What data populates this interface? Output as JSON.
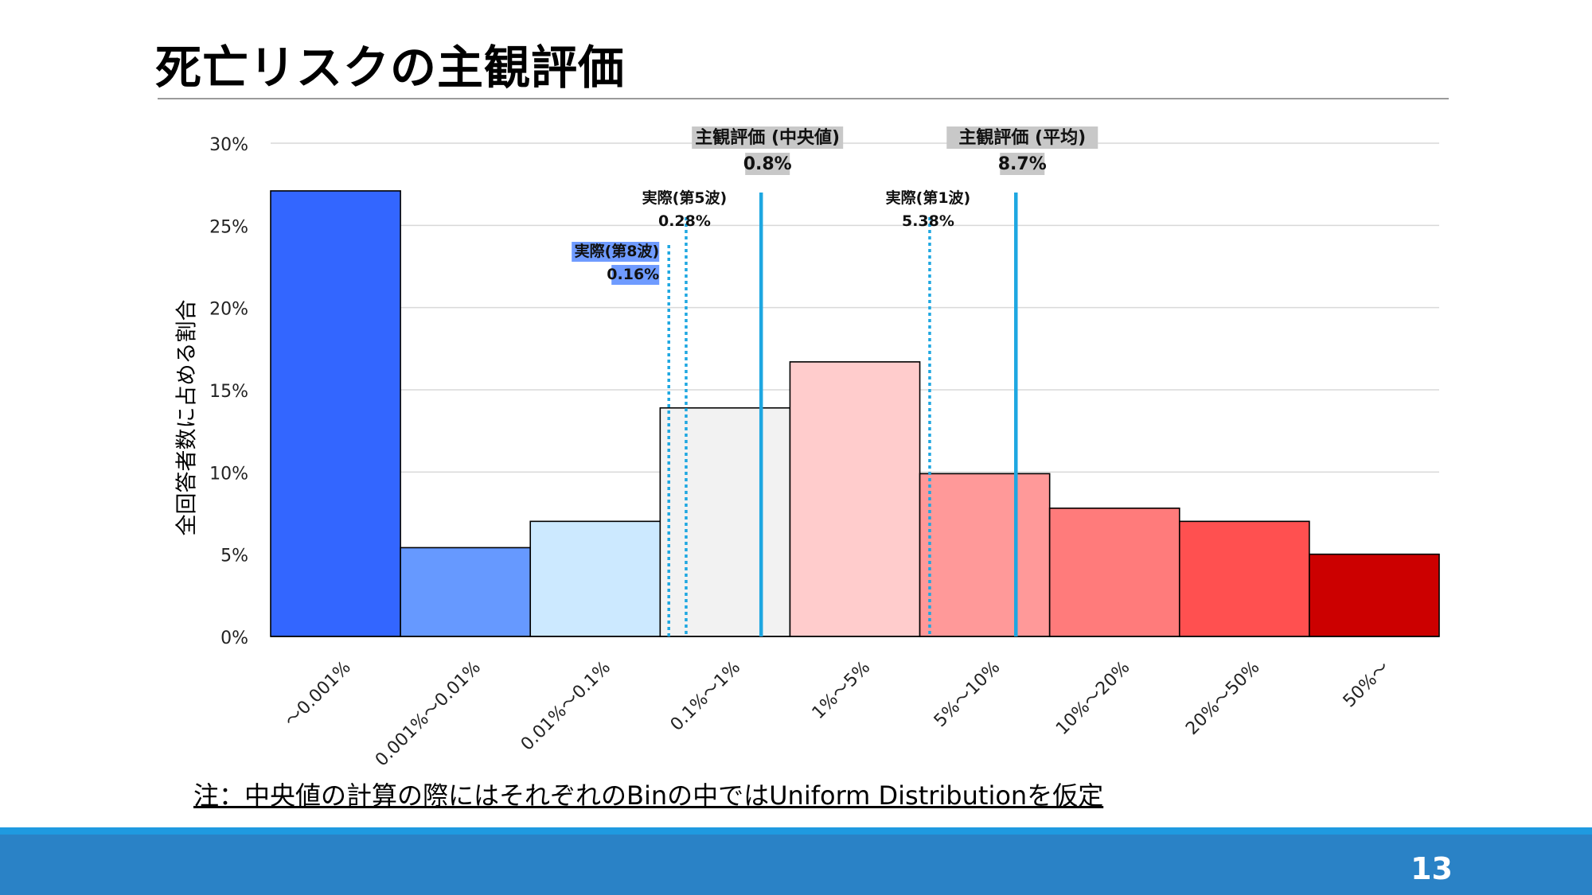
{
  "slide": {
    "title": "死亡リスクの主観評価",
    "note": "注：中央値の計算の際にはそれぞれのBinの中ではUniform Distributionを仮定",
    "page_number": "13"
  },
  "colors": {
    "footer_bar": "#2a82c6",
    "footer_line": "#1f9ae0",
    "subjective_line": "#1ea7e1",
    "actual_line": "#1ea7e1"
  },
  "chart_data": {
    "type": "bar",
    "ylabel": "全回答者数に占める割合",
    "ylim": [
      0,
      30
    ],
    "yticks": [
      "0%",
      "5%",
      "10%",
      "15%",
      "20%",
      "25%",
      "30%"
    ],
    "grid": true,
    "categories": [
      "～0.001%",
      "0.001%～0.01%",
      "0.01%～0.1%",
      "0.1%～1%",
      "1%～5%",
      "5%～10%",
      "10%～20%",
      "20%～50%",
      "50%～"
    ],
    "values": [
      27.1,
      5.4,
      7.0,
      13.9,
      16.7,
      9.9,
      7.8,
      7.0,
      5.0
    ],
    "bar_colors": [
      "#3366ff",
      "#6699ff",
      "#cce9ff",
      "#f2f2f2",
      "#ffcccc",
      "#ff9999",
      "#ff7b7b",
      "#ff5050",
      "#cc0000"
    ],
    "reference_lines": [
      {
        "label": "主観評価 (中央値)",
        "value_label": "0.8%",
        "value": 0.8,
        "style": "solid",
        "label_bg": "#c8c8c8"
      },
      {
        "label": "主観評価 (平均)",
        "value_label": "8.7%",
        "value": 8.7,
        "style": "solid",
        "label_bg": "#c8c8c8"
      },
      {
        "label": "実際(第5波)",
        "value_label": "0.28%",
        "value": 0.28,
        "style": "dotted",
        "label_bg": ""
      },
      {
        "label": "実際(第8波)",
        "value_label": "0.16%",
        "value": 0.16,
        "style": "dotted",
        "label_bg": "#6f9bff"
      },
      {
        "label": "実際(第1波)",
        "value_label": "5.38%",
        "value": 5.38,
        "style": "dotted",
        "label_bg": ""
      }
    ]
  }
}
